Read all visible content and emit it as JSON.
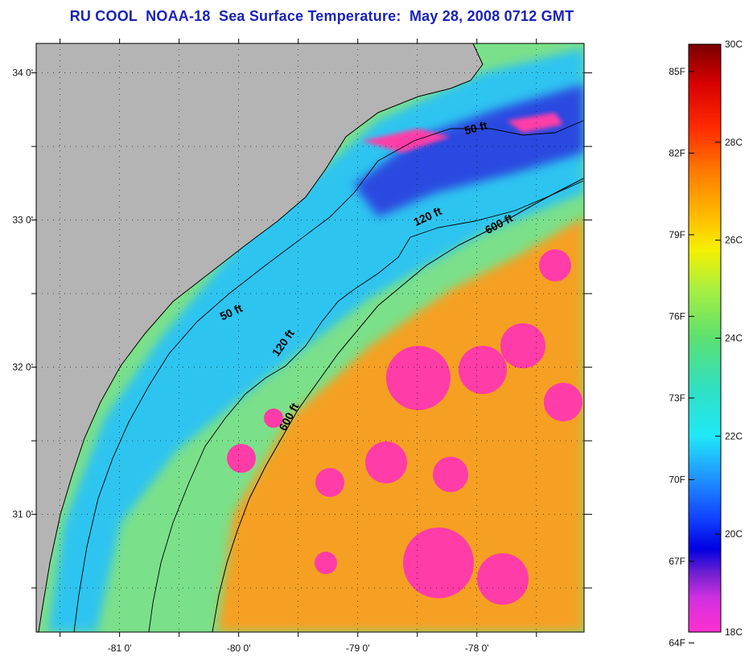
{
  "title": "RU COOL  NOAA-18  Sea Surface Temperature:  May 28, 2008 0712 GMT",
  "map": {
    "lon_range": [
      -81.7,
      -77.1
    ],
    "lat_range": [
      30.2,
      34.2
    ],
    "lon_ticks": [
      {
        "value": -81,
        "label": "-81 0'"
      },
      {
        "value": -80,
        "label": "-80 0'"
      },
      {
        "value": -79,
        "label": "-79 0'"
      },
      {
        "value": -78,
        "label": "-78 0'"
      }
    ],
    "lat_ticks": [
      {
        "value": 34,
        "label": "34 0'"
      },
      {
        "value": 33,
        "label": "33 0'"
      },
      {
        "value": 32,
        "label": "32 0'"
      },
      {
        "value": 31,
        "label": "31 0'"
      }
    ],
    "isobaths": [
      {
        "label": "50 ft",
        "lon": -80.05,
        "lat": 32.35,
        "angle": -25
      },
      {
        "label": "50 ft",
        "lon": -78.0,
        "lat": 33.6,
        "angle": -15
      },
      {
        "label": "120 ft",
        "lon": -79.6,
        "lat": 32.15,
        "angle": -55
      },
      {
        "label": "120 ft",
        "lon": -78.4,
        "lat": 33.0,
        "angle": -25
      },
      {
        "label": "600 ft",
        "lon": -79.55,
        "lat": 31.65,
        "angle": -62
      },
      {
        "label": "600 ft",
        "lon": -77.8,
        "lat": 32.95,
        "angle": -28
      }
    ],
    "colors": {
      "land": "#b4b4b4",
      "shelf": "#2ec4f0",
      "inner_cold": "#2a48e0",
      "gulf_stream": "#f5a020",
      "cloud": "#ff3ca8",
      "mid": "#7be08a"
    }
  },
  "colorbar": {
    "fahrenheit": [
      {
        "value": 85,
        "label": "85F"
      },
      {
        "value": 82,
        "label": "82F"
      },
      {
        "value": 79,
        "label": "79F"
      },
      {
        "value": 76,
        "label": "76F"
      },
      {
        "value": 73,
        "label": "73F"
      },
      {
        "value": 70,
        "label": "70F"
      },
      {
        "value": 67,
        "label": "67F"
      },
      {
        "value": 64,
        "label": "64F"
      }
    ],
    "celsius": [
      {
        "value": 30,
        "label": "30C"
      },
      {
        "value": 28,
        "label": "28C"
      },
      {
        "value": 26,
        "label": "26C"
      },
      {
        "value": 24,
        "label": "24C"
      },
      {
        "value": 22,
        "label": "22C"
      },
      {
        "value": 20,
        "label": "20C"
      },
      {
        "value": 18,
        "label": "18C"
      }
    ],
    "range_c": [
      18,
      30
    ],
    "stops": [
      {
        "c": 30.0,
        "color": "#7a0000"
      },
      {
        "c": 29.2,
        "color": "#d80000"
      },
      {
        "c": 28.3,
        "color": "#ff2a00"
      },
      {
        "c": 27.4,
        "color": "#ff7a00"
      },
      {
        "c": 26.4,
        "color": "#ffc200"
      },
      {
        "c": 25.8,
        "color": "#f5f000"
      },
      {
        "c": 25.0,
        "color": "#a8f040"
      },
      {
        "c": 24.0,
        "color": "#5ce070"
      },
      {
        "c": 23.0,
        "color": "#30e0c0"
      },
      {
        "c": 22.0,
        "color": "#20e8f8"
      },
      {
        "c": 21.2,
        "color": "#2098ff"
      },
      {
        "c": 20.3,
        "color": "#1040ff"
      },
      {
        "c": 19.7,
        "color": "#0000e0"
      },
      {
        "c": 19.2,
        "color": "#7020d0"
      },
      {
        "c": 18.7,
        "color": "#d030e0"
      },
      {
        "c": 18.0,
        "color": "#ff30d0"
      }
    ]
  }
}
